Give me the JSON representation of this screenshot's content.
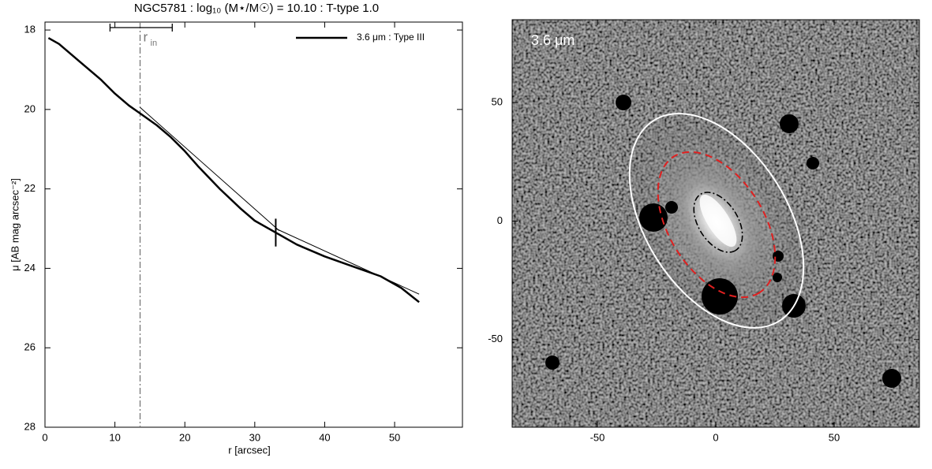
{
  "chart_data": [
    {
      "type": "line",
      "title": "NGC5781 : log₁₀ (M⋆/M☉) = 10.10 : T-type 1.0",
      "xlabel": "r [arcsec]",
      "ylabel": "μ [AB mag arcsec⁻²]",
      "xlim": [
        0,
        59.7
      ],
      "xticks": [
        0,
        10,
        20,
        30,
        40,
        50
      ],
      "ylim": [
        28,
        17.8
      ],
      "yticks": [
        18,
        20,
        22,
        24,
        26,
        28
      ],
      "legend": "upper right",
      "series": [
        {
          "name": "3.6 μm : Type III",
          "color": "#000000",
          "linewidth": 2.5,
          "x": [
            0.5,
            2,
            5,
            8,
            10,
            12,
            14,
            16,
            18,
            20,
            22,
            25,
            28,
            30,
            33,
            36,
            40,
            44,
            48,
            51,
            53.5
          ],
          "values": [
            18.2,
            18.35,
            18.8,
            19.25,
            19.6,
            19.9,
            20.15,
            20.4,
            20.7,
            21.05,
            21.45,
            22.0,
            22.5,
            22.8,
            23.1,
            23.4,
            23.7,
            23.95,
            24.2,
            24.5,
            24.85
          ]
        },
        {
          "color": "#000000",
          "linewidth": 1,
          "x": [
            13.6,
            33.5
          ],
          "values": [
            19.95,
            23.05
          ]
        },
        {
          "color": "#000000",
          "linewidth": 1,
          "x": [
            33,
            53.5
          ],
          "values": [
            23.0,
            24.65
          ]
        }
      ],
      "annotation": {
        "text": "r",
        "subscript": "in",
        "x": 13.6,
        "x_low": 9.3,
        "x_high": 18.2,
        "color": "#777777"
      },
      "break": {
        "x": 33,
        "y_low": 22.75,
        "y_high": 23.45
      }
    },
    {
      "type": "image",
      "label": "3.6 μm",
      "xlim": [
        -86,
        86
      ],
      "xticks": [
        -50,
        0,
        50
      ],
      "ylim": [
        -87,
        85
      ],
      "yticks": [
        -50,
        0,
        50
      ]
    }
  ]
}
